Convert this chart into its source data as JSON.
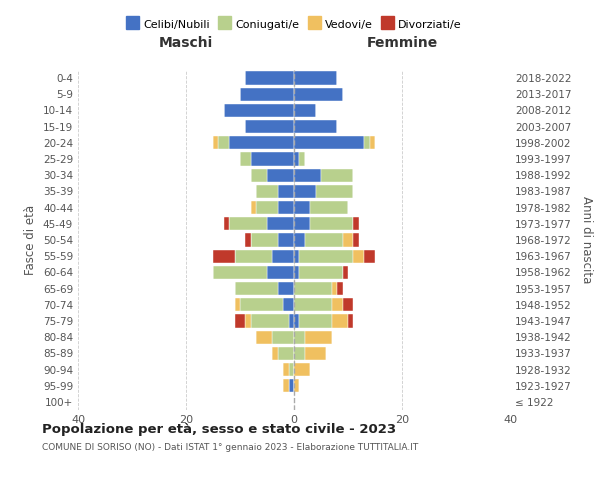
{
  "age_groups": [
    "100+",
    "95-99",
    "90-94",
    "85-89",
    "80-84",
    "75-79",
    "70-74",
    "65-69",
    "60-64",
    "55-59",
    "50-54",
    "45-49",
    "40-44",
    "35-39",
    "30-34",
    "25-29",
    "20-24",
    "15-19",
    "10-14",
    "5-9",
    "0-4"
  ],
  "birth_years": [
    "≤ 1922",
    "1923-1927",
    "1928-1932",
    "1933-1937",
    "1938-1942",
    "1943-1947",
    "1948-1952",
    "1953-1957",
    "1958-1962",
    "1963-1967",
    "1968-1972",
    "1973-1977",
    "1978-1982",
    "1983-1987",
    "1988-1992",
    "1993-1997",
    "1998-2002",
    "2003-2007",
    "2008-2012",
    "2013-2017",
    "2018-2022"
  ],
  "maschi": {
    "celibi": [
      0,
      1,
      0,
      0,
      0,
      1,
      2,
      3,
      5,
      4,
      3,
      5,
      3,
      3,
      5,
      8,
      12,
      9,
      13,
      10,
      9
    ],
    "coniugati": [
      0,
      0,
      1,
      3,
      4,
      7,
      8,
      8,
      10,
      7,
      5,
      7,
      4,
      4,
      3,
      2,
      2,
      0,
      0,
      0,
      0
    ],
    "vedovi": [
      0,
      1,
      1,
      1,
      3,
      1,
      1,
      0,
      0,
      0,
      0,
      0,
      1,
      0,
      0,
      0,
      1,
      0,
      0,
      0,
      0
    ],
    "divorziati": [
      0,
      0,
      0,
      0,
      0,
      2,
      0,
      0,
      0,
      4,
      1,
      1,
      0,
      0,
      0,
      0,
      0,
      0,
      0,
      0,
      0
    ]
  },
  "femmine": {
    "nubili": [
      0,
      0,
      0,
      0,
      0,
      1,
      0,
      0,
      1,
      1,
      2,
      3,
      3,
      4,
      5,
      1,
      13,
      8,
      4,
      9,
      8
    ],
    "coniugate": [
      0,
      0,
      0,
      2,
      2,
      6,
      7,
      7,
      8,
      10,
      7,
      8,
      7,
      7,
      6,
      1,
      1,
      0,
      0,
      0,
      0
    ],
    "vedove": [
      0,
      1,
      3,
      4,
      5,
      3,
      2,
      1,
      0,
      2,
      2,
      0,
      0,
      0,
      0,
      0,
      1,
      0,
      0,
      0,
      0
    ],
    "divorziate": [
      0,
      0,
      0,
      0,
      0,
      1,
      2,
      1,
      1,
      2,
      1,
      1,
      0,
      0,
      0,
      0,
      0,
      0,
      0,
      0,
      0
    ]
  },
  "colors": {
    "celibi": "#4472c4",
    "coniugati": "#b8d08d",
    "vedovi": "#f0c060",
    "divorziati": "#c0392b"
  },
  "title": "Popolazione per età, sesso e stato civile - 2023",
  "subtitle": "COMUNE DI SORISO (NO) - Dati ISTAT 1° gennaio 2023 - Elaborazione TUTTITALIA.IT",
  "ylabel": "Fasce di età",
  "ylabel_right": "Anni di nascita",
  "xlabel_left": "Maschi",
  "xlabel_right": "Femmine",
  "xlim": 40,
  "legend_labels": [
    "Celibi/Nubili",
    "Coniugati/e",
    "Vedovi/e",
    "Divorziati/e"
  ],
  "background_color": "#ffffff"
}
